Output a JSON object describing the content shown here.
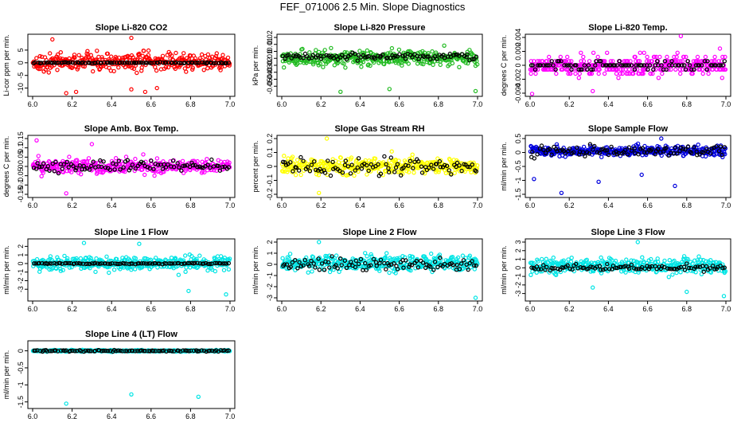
{
  "title": "FEF_071006  2.5 Min. Slope Diagnostics",
  "chart_data": [
    {
      "type": "scatter",
      "title": "Slope Li-820 CO2",
      "ylabel": "Li-cor ppm per min.",
      "xlabel": "",
      "xlim": [
        6.0,
        7.0
      ],
      "ylim": [
        -12,
        10
      ],
      "xticks": [
        6.0,
        6.2,
        6.4,
        6.6,
        6.8,
        7.0
      ],
      "yticks": [
        -10,
        -5,
        0,
        5
      ],
      "series": [
        {
          "name": "primary",
          "color": "#ff0000",
          "center": 0.3,
          "spread": 3.0,
          "outliers": [
            [
              6.1,
              9.2
            ],
            [
              6.5,
              9.8
            ],
            [
              6.17,
              -12.0
            ],
            [
              6.5,
              -10.5
            ],
            [
              6.57,
              -11.5
            ],
            [
              6.63,
              -10.0
            ],
            [
              6.22,
              -11.5
            ]
          ]
        },
        {
          "name": "reference",
          "color": "#000000",
          "center": 0.0,
          "spread": 0.2
        }
      ]
    },
    {
      "type": "scatter",
      "title": "Slope Li-820 Pressure",
      "ylabel": "kPa per min.",
      "xlabel": "",
      "xlim": [
        6.0,
        7.0
      ],
      "ylim": [
        -0.06,
        0.02
      ],
      "xticks": [
        6.0,
        6.2,
        6.4,
        6.6,
        6.8,
        7.0
      ],
      "yticks": [
        -0.05,
        -0.04,
        -0.03,
        -0.02,
        -0.01,
        0.0,
        0.01,
        0.02
      ],
      "series": [
        {
          "name": "primary",
          "color": "#22bb22",
          "center": -0.01,
          "spread": 0.009,
          "outliers": [
            [
              6.3,
              -0.058
            ],
            [
              6.99,
              -0.057
            ],
            [
              6.55,
              -0.054
            ]
          ]
        },
        {
          "name": "reference",
          "color": "#000000",
          "center": -0.007,
          "spread": 0.004
        }
      ]
    },
    {
      "type": "scatter",
      "title": "Slope Li-820 Temp.",
      "ylabel": "degrees C per min.",
      "xlabel": "",
      "xlim": [
        6.0,
        7.0
      ],
      "ylim": [
        -0.004,
        0.004
      ],
      "xticks": [
        6.0,
        6.2,
        6.4,
        6.6,
        6.8,
        7.0
      ],
      "yticks": [
        -0.004,
        -0.002,
        0.0,
        0.002,
        0.004
      ],
      "series": [
        {
          "name": "primary",
          "color": "#ff00ff",
          "center": 0.0,
          "spread": 0.0012,
          "quantize": 0.0006,
          "outliers": [
            [
              6.77,
              0.0042
            ],
            [
              6.32,
              -0.0037
            ],
            [
              6.01,
              -0.0041
            ]
          ]
        },
        {
          "name": "reference",
          "color": "#000000",
          "center": 0.0,
          "spread": 0.0006,
          "quantize": 0.0006
        }
      ]
    },
    {
      "type": "scatter",
      "title": "Slope Amb. Box Temp.",
      "ylabel": "degrees C per min.",
      "xlabel": "",
      "xlim": [
        6.0,
        7.0
      ],
      "ylim": [
        -0.15,
        0.15
      ],
      "xticks": [
        6.0,
        6.2,
        6.4,
        6.6,
        6.8,
        7.0
      ],
      "yticks": [
        -0.15,
        -0.1,
        -0.05,
        0.0,
        0.05,
        0.1,
        0.15
      ],
      "series": [
        {
          "name": "primary",
          "color": "#ff00ff",
          "center": 0.0,
          "spread": 0.035,
          "outliers": [
            [
              6.02,
              0.14
            ],
            [
              6.17,
              -0.145
            ],
            [
              6.3,
              0.12
            ]
          ]
        },
        {
          "name": "reference",
          "color": "#000000",
          "center": 0.0,
          "spread": 0.03
        }
      ]
    },
    {
      "type": "scatter",
      "title": "Slope Gas Stream RH",
      "ylabel": "percent per min.",
      "xlabel": "",
      "xlim": [
        6.0,
        7.0
      ],
      "ylim": [
        -0.2,
        0.2
      ],
      "xticks": [
        6.0,
        6.2,
        6.4,
        6.6,
        6.8,
        7.0
      ],
      "yticks": [
        -0.2,
        -0.1,
        0.0,
        0.1,
        0.2
      ],
      "series": [
        {
          "name": "primary",
          "color": "#ffff00",
          "center": 0.0,
          "spread": 0.05,
          "outliers": [
            [
              6.23,
              0.2
            ],
            [
              6.19,
              -0.19
            ]
          ]
        },
        {
          "name": "reference",
          "color": "#000000",
          "center": 0.0,
          "spread": 0.05
        }
      ]
    },
    {
      "type": "scatter",
      "title": "Slope Sample Flow",
      "ylabel": "ml/min per min.",
      "xlabel": "",
      "xlim": [
        6.0,
        7.0
      ],
      "ylim": [
        -1.5,
        0.5
      ],
      "xticks": [
        6.0,
        6.2,
        6.4,
        6.6,
        6.8,
        7.0
      ],
      "yticks": [
        -1.5,
        -1.0,
        -0.5,
        0.0,
        0.5
      ],
      "series": [
        {
          "name": "primary",
          "color": "#0000dd",
          "center": 0.05,
          "spread": 0.15,
          "outliers": [
            [
              6.02,
              -0.95
            ],
            [
              6.16,
              -1.45
            ],
            [
              6.35,
              -1.05
            ],
            [
              6.74,
              -1.2
            ],
            [
              6.57,
              -0.8
            ],
            [
              6.67,
              0.5
            ]
          ]
        },
        {
          "name": "reference",
          "color": "#000000",
          "center": 0.05,
          "spread": 0.2
        }
      ]
    },
    {
      "type": "scatter",
      "title": "Slope Line 1 Flow",
      "ylabel": "ml/min per min.",
      "xlabel": "",
      "xlim": [
        6.0,
        7.0
      ],
      "ylim": [
        -4,
        2.5
      ],
      "xticks": [
        6.0,
        6.2,
        6.4,
        6.6,
        6.8,
        7.0
      ],
      "yticks": [
        -3,
        -2,
        -1,
        0,
        1,
        2
      ],
      "series": [
        {
          "name": "primary",
          "color": "#00e5e5",
          "center": 0.0,
          "spread": 0.7,
          "outliers": [
            [
              6.26,
              2.4
            ],
            [
              6.54,
              2.3
            ],
            [
              6.79,
              -3.2
            ],
            [
              6.98,
              -3.6
            ]
          ]
        },
        {
          "name": "reference",
          "color": "#000000",
          "center": 0.0,
          "spread": 0.06
        }
      ]
    },
    {
      "type": "scatter",
      "title": "Slope Line 2 Flow",
      "ylabel": "ml/min per min.",
      "xlabel": "",
      "xlim": [
        6.0,
        7.0
      ],
      "ylim": [
        -3,
        2
      ],
      "xticks": [
        6.0,
        6.2,
        6.4,
        6.6,
        6.8,
        7.0
      ],
      "yticks": [
        -3,
        -2,
        -1,
        0,
        1,
        2
      ],
      "series": [
        {
          "name": "primary",
          "color": "#00e5e5",
          "center": 0.1,
          "spread": 0.6,
          "outliers": [
            [
              6.19,
              2.0
            ],
            [
              6.99,
              -3.0
            ]
          ]
        },
        {
          "name": "reference",
          "color": "#000000",
          "center": 0.0,
          "spread": 0.55
        }
      ]
    },
    {
      "type": "scatter",
      "title": "Slope Line 3 Flow",
      "ylabel": "ml/min per min.",
      "xlabel": "",
      "xlim": [
        6.0,
        7.0
      ],
      "ylim": [
        -3.5,
        3
      ],
      "xticks": [
        6.0,
        6.2,
        6.4,
        6.6,
        6.8,
        7.0
      ],
      "yticks": [
        -3,
        -2,
        -1,
        0,
        1,
        2,
        3
      ],
      "series": [
        {
          "name": "primary",
          "color": "#00e5e5",
          "center": 0.2,
          "spread": 0.75,
          "outliers": [
            [
              6.32,
              -2.3
            ],
            [
              6.8,
              -2.8
            ],
            [
              6.99,
              -3.3
            ],
            [
              6.55,
              3.0
            ]
          ]
        },
        {
          "name": "reference",
          "color": "#000000",
          "center": 0.0,
          "spread": 0.35
        }
      ]
    },
    {
      "type": "scatter",
      "title": "Slope Line 4 (LT) Flow",
      "ylabel": "ml/min per min.",
      "xlabel": "",
      "xlim": [
        6.0,
        7.0
      ],
      "ylim": [
        -1.6,
        0.2
      ],
      "xticks": [
        6.0,
        6.2,
        6.4,
        6.6,
        6.8,
        7.0
      ],
      "yticks": [
        -1.5,
        -1.0,
        -0.5,
        0.0
      ],
      "series": [
        {
          "name": "primary",
          "color": "#00e5e5",
          "center": 0.0,
          "spread": 0.02,
          "outliers": [
            [
              6.17,
              -1.55
            ],
            [
              6.5,
              -1.28
            ],
            [
              6.84,
              -1.35
            ]
          ]
        },
        {
          "name": "reference",
          "color": "#000000",
          "center": 0.0,
          "spread": 0.02
        }
      ]
    }
  ]
}
